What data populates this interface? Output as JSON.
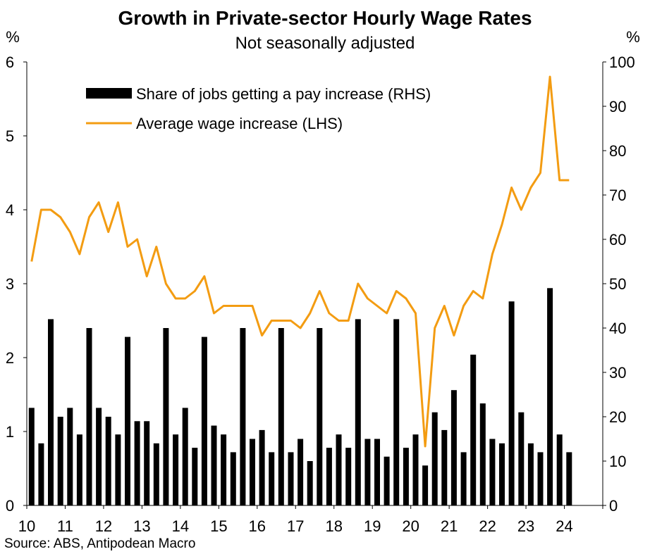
{
  "chart_data": {
    "type": "bar+line",
    "title": "Growth in Private-sector Hourly Wage Rates",
    "subtitle": "Not seasonally adjusted",
    "source": "Source: ABS, Antipodean Macro",
    "left_axis": {
      "label": "%",
      "ylim": [
        0,
        6
      ],
      "ticks": [
        "0",
        "1",
        "2",
        "3",
        "4",
        "5",
        "6"
      ]
    },
    "right_axis": {
      "label": "%",
      "ylim": [
        0,
        100
      ],
      "ticks": [
        "0",
        "10",
        "20",
        "30",
        "40",
        "50",
        "60",
        "70",
        "80",
        "90",
        "100"
      ]
    },
    "x_axis": {
      "xlim": [
        2010.0,
        2025.0
      ],
      "tick_labels": [
        "10",
        "11",
        "12",
        "13",
        "14",
        "15",
        "16",
        "17",
        "18",
        "19",
        "20",
        "21",
        "22",
        "23",
        "24"
      ]
    },
    "legend": {
      "placement": "top-left",
      "items": [
        {
          "label": "Share of jobs getting a pay increase (RHS)",
          "kind": "bar",
          "color": "#000000"
        },
        {
          "label": "Average wage increase (LHS)",
          "kind": "line",
          "color": "#F39C12"
        }
      ]
    },
    "x": [
      2010.125,
      2010.375,
      2010.625,
      2010.875,
      2011.125,
      2011.375,
      2011.625,
      2011.875,
      2012.125,
      2012.375,
      2012.625,
      2012.875,
      2013.125,
      2013.375,
      2013.625,
      2013.875,
      2014.125,
      2014.375,
      2014.625,
      2014.875,
      2015.125,
      2015.375,
      2015.625,
      2015.875,
      2016.125,
      2016.375,
      2016.625,
      2016.875,
      2017.125,
      2017.375,
      2017.625,
      2017.875,
      2018.125,
      2018.375,
      2018.625,
      2018.875,
      2019.125,
      2019.375,
      2019.625,
      2019.875,
      2020.125,
      2020.375,
      2020.625,
      2020.875,
      2021.125,
      2021.375,
      2021.625,
      2021.875,
      2022.125,
      2022.375,
      2022.625,
      2022.875,
      2023.125,
      2023.375,
      2023.625,
      2023.875,
      2024.125
    ],
    "series": [
      {
        "name": "Share of jobs getting a pay increase (RHS)",
        "type": "bar",
        "axis": "right",
        "color": "#000000",
        "values": [
          22,
          14,
          42,
          20,
          22,
          16,
          40,
          22,
          20,
          16,
          38,
          19,
          19,
          14,
          40,
          16,
          22,
          13,
          38,
          18,
          16,
          12,
          40,
          15,
          17,
          12,
          40,
          12,
          15,
          10,
          40,
          13,
          16,
          13,
          42,
          15,
          15,
          11,
          42,
          13,
          16,
          9,
          21,
          17,
          26,
          12,
          34,
          23,
          15,
          14,
          46,
          21,
          14,
          12,
          49,
          16,
          12
        ]
      },
      {
        "name": "Average wage increase (LHS)",
        "type": "line",
        "axis": "left",
        "color": "#F39C12",
        "values": [
          3.3,
          4.0,
          4.0,
          3.9,
          3.7,
          3.4,
          3.9,
          4.1,
          3.7,
          4.1,
          3.5,
          3.6,
          3.1,
          3.5,
          3.0,
          2.8,
          2.8,
          2.9,
          3.1,
          2.6,
          2.7,
          2.7,
          2.7,
          2.7,
          2.3,
          2.5,
          2.5,
          2.5,
          2.4,
          2.6,
          2.9,
          2.6,
          2.5,
          2.5,
          3.0,
          2.8,
          2.7,
          2.6,
          2.9,
          2.8,
          2.6,
          0.8,
          2.4,
          2.7,
          2.3,
          2.7,
          2.9,
          2.8,
          3.4,
          3.8,
          4.3,
          4.0,
          4.3,
          4.5,
          5.8,
          4.4,
          4.4
        ]
      }
    ]
  }
}
